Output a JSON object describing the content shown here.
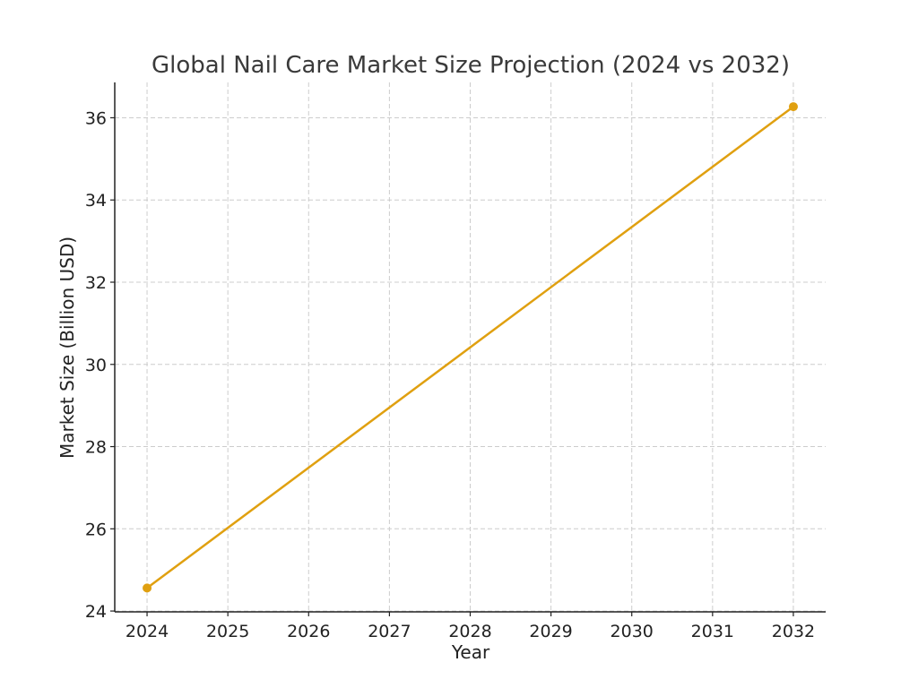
{
  "chart_data": {
    "type": "line",
    "title": "Global Nail Care Market Size Projection (2024 vs 2032)",
    "xlabel": "Year",
    "ylabel": "Market Size (Billion USD)",
    "x": [
      2024,
      2032
    ],
    "series": [
      {
        "values": [
          24.56,
          36.27
        ],
        "color": "#E0A010"
      }
    ],
    "xticks": [
      "2024",
      "2025",
      "2026",
      "2027",
      "2028",
      "2029",
      "2030",
      "2031",
      "2032"
    ],
    "yticks": [
      "24",
      "26",
      "28",
      "30",
      "32",
      "34",
      "36"
    ],
    "xlim": [
      2023.6,
      2032.4
    ],
    "ylim": [
      23.98,
      36.86
    ],
    "grid": true,
    "legend": "none"
  }
}
